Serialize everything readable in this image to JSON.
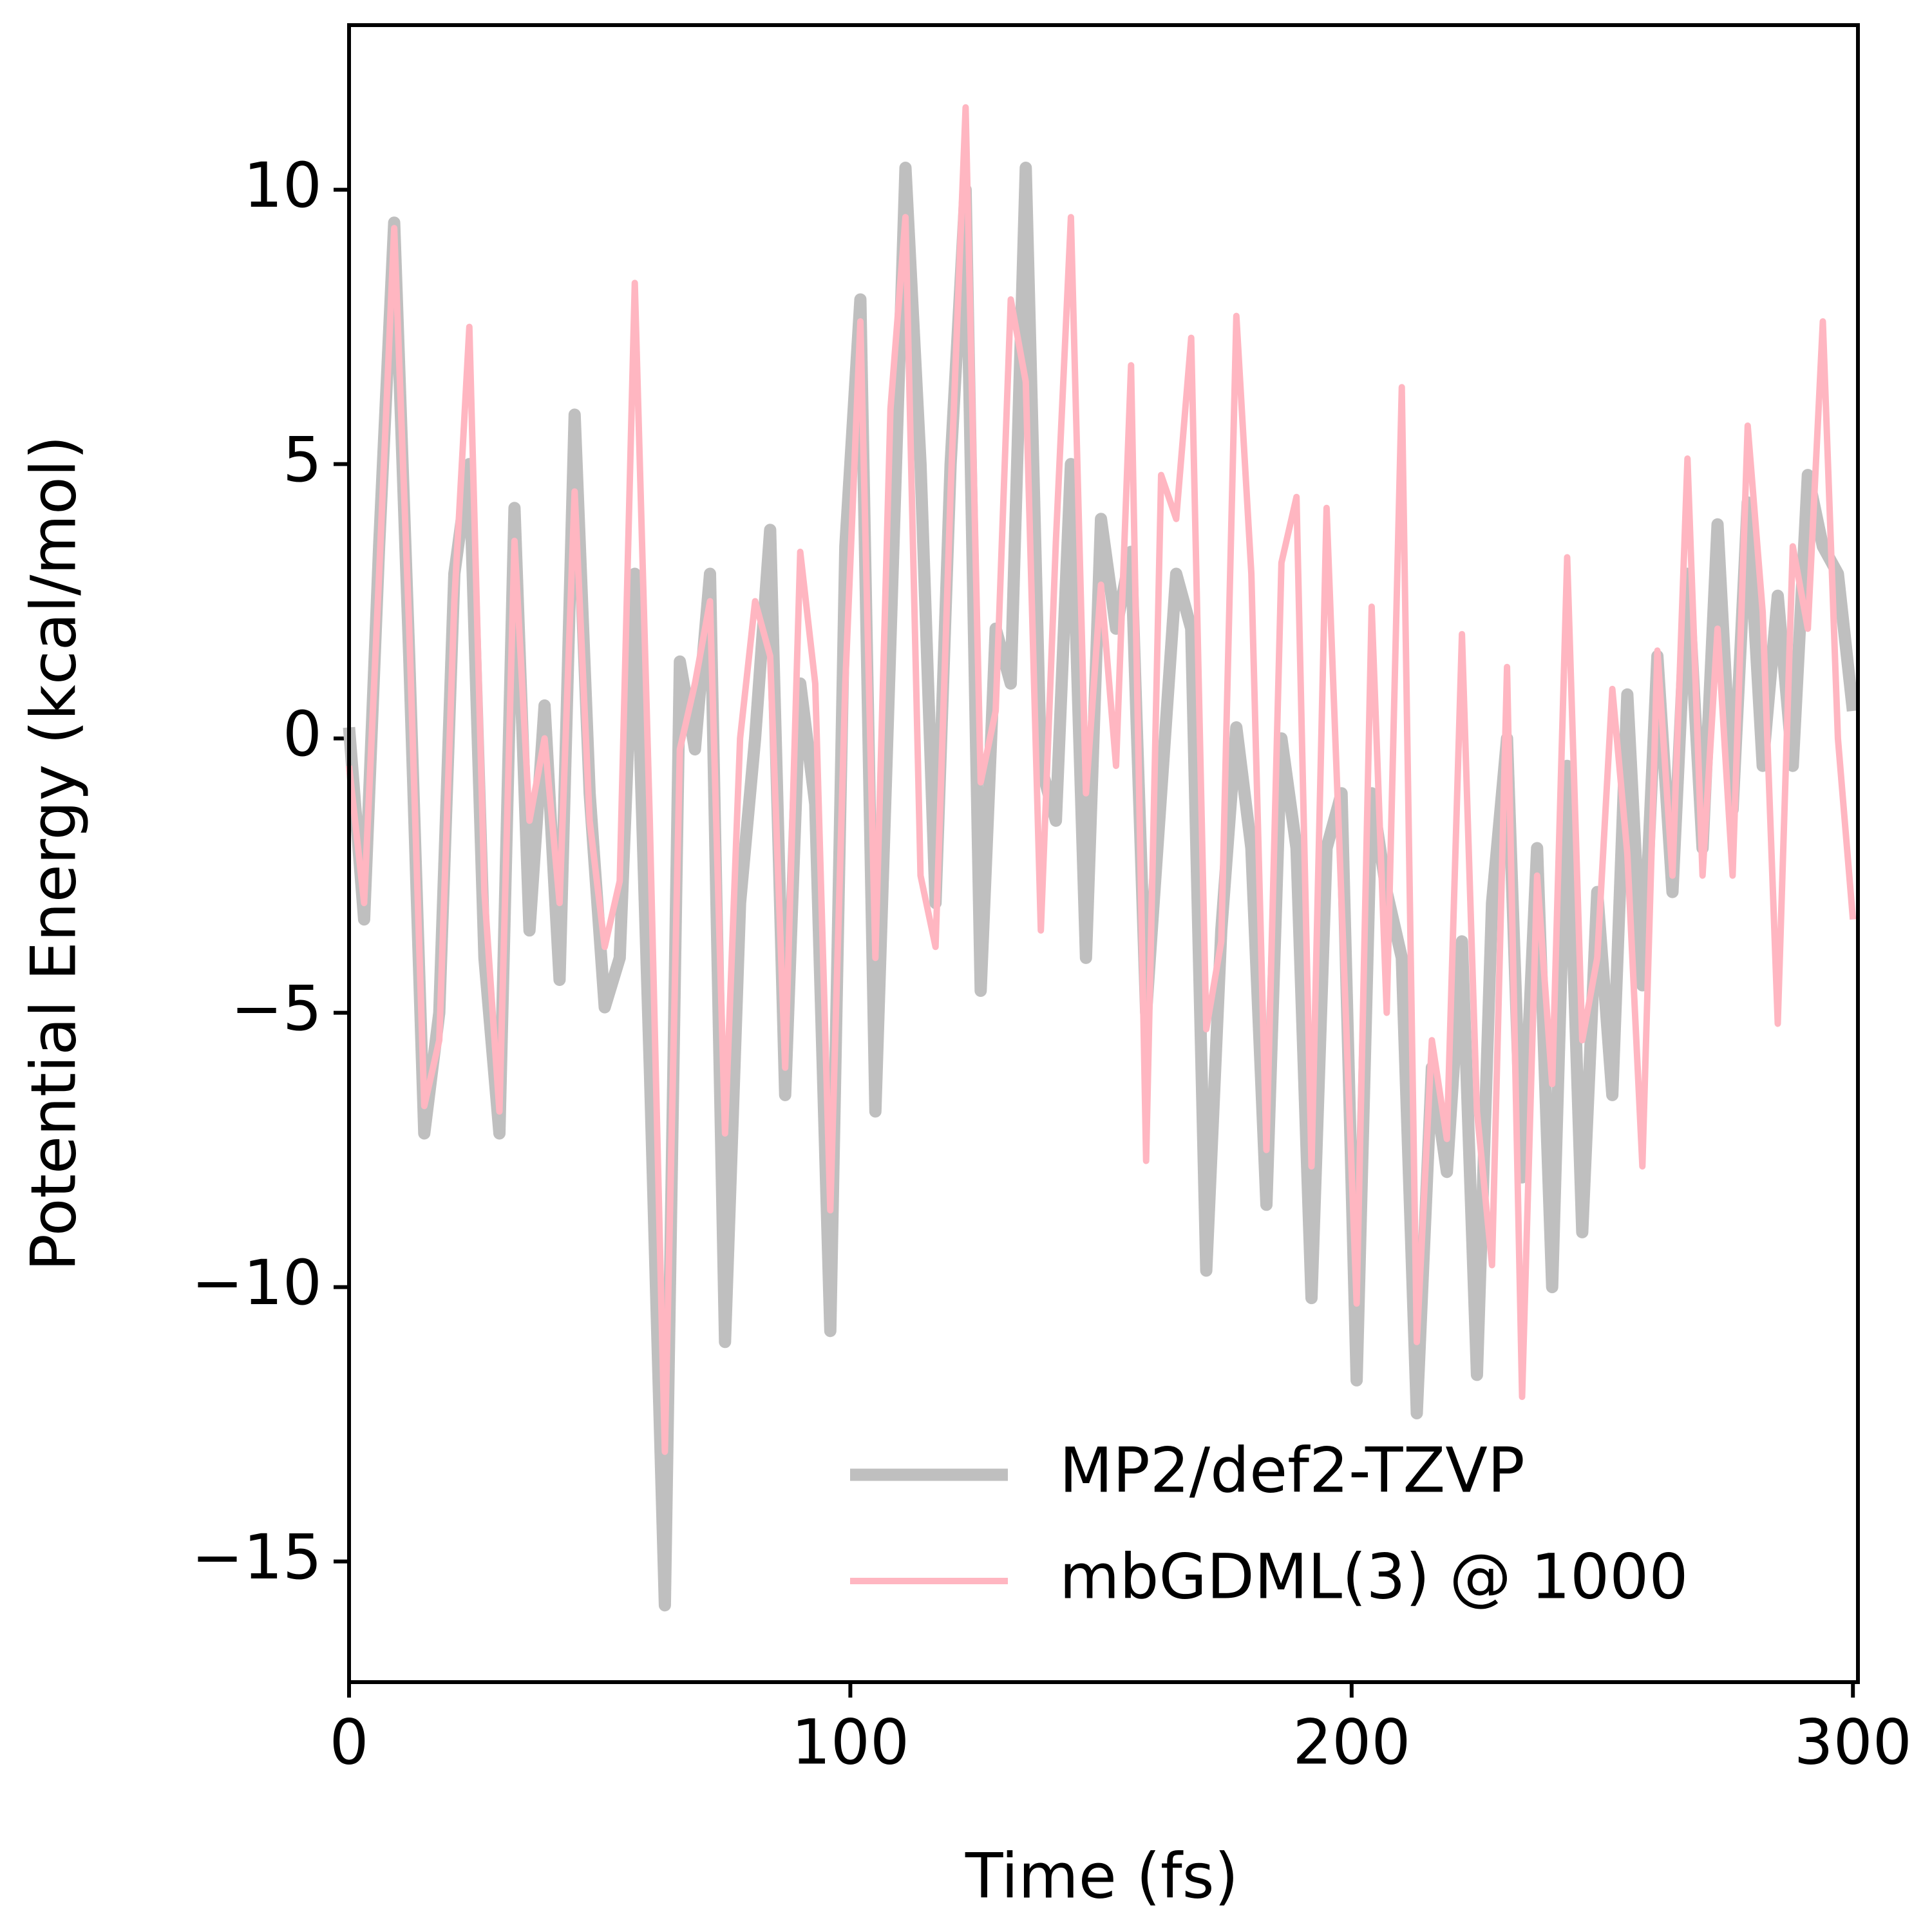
{
  "chart_data": {
    "type": "line",
    "x_label": "Time (fs)",
    "y_label": "Potential Energy (kcal/mol)",
    "x": [
      0,
      3,
      6,
      9,
      12,
      15,
      18,
      21,
      24,
      27,
      30,
      33,
      36,
      39,
      42,
      45,
      48,
      51,
      54,
      57,
      60,
      63,
      66,
      69,
      72,
      75,
      78,
      81,
      84,
      87,
      90,
      93,
      96,
      99,
      102,
      105,
      108,
      111,
      114,
      117,
      120,
      123,
      126,
      129,
      132,
      135,
      138,
      141,
      144,
      147,
      150,
      153,
      156,
      159,
      162,
      165,
      168,
      171,
      174,
      177,
      180,
      183,
      186,
      189,
      192,
      195,
      198,
      201,
      204,
      207,
      210,
      213,
      216,
      219,
      222,
      225,
      228,
      231,
      234,
      237,
      240,
      243,
      246,
      249,
      252,
      255,
      258,
      261,
      264,
      267,
      270,
      273,
      276,
      279,
      282,
      285,
      288,
      291,
      294,
      297,
      300
    ],
    "series": [
      {
        "name": "MP2/def2-TZVP",
        "color": "#bfbfbf",
        "width": "thick",
        "values": [
          0.2,
          -3.3,
          3.5,
          9.4,
          1.5,
          -7.2,
          -5,
          3,
          5,
          -4,
          -7.2,
          4.2,
          -3.5,
          0.6,
          -4.4,
          5.9,
          -1,
          -4.9,
          -4,
          3,
          -6,
          -15.8,
          1.4,
          -0.2,
          3,
          -11,
          -3,
          0,
          3.8,
          -6.5,
          1,
          -1.2,
          -10.8,
          3.5,
          8,
          -6.8,
          1.8,
          10.4,
          5,
          -3,
          5,
          10,
          -4.6,
          2,
          1,
          10.4,
          -0.5,
          -1.5,
          5,
          -4,
          4,
          2,
          3.4,
          -5,
          -1,
          3,
          2,
          -9.7,
          -3.5,
          0.2,
          -2,
          -8.5,
          0,
          -2,
          -10.2,
          -2,
          -1,
          -11.7,
          -1,
          -2.8,
          -4,
          -12.3,
          -6,
          -7.9,
          -3.7,
          -11.6,
          -3,
          0,
          -8,
          -2,
          -10,
          -0.5,
          -9,
          -2.8,
          -6.5,
          0.8,
          -4.5,
          1.5,
          -2.8,
          3,
          -2,
          3.9,
          -1.3,
          4.3,
          -0.5,
          2.6,
          -0.5,
          4.8,
          3.5,
          3,
          0.5
        ]
      },
      {
        "name": "mbGDML(3) @ 1000",
        "color": "#ffb6c1",
        "width": "thin",
        "values": [
          -0.5,
          -3,
          3,
          9.3,
          2,
          -6.7,
          -5.5,
          2.5,
          7.5,
          -2.8,
          -6.8,
          3.6,
          -1.5,
          0,
          -3,
          4.5,
          -1.5,
          -3.8,
          -2.6,
          8.3,
          -1.5,
          -13,
          -0.2,
          1,
          2.5,
          -7.2,
          0,
          2.5,
          1.5,
          -6,
          3.4,
          1,
          -8.6,
          1,
          7.6,
          -4,
          6,
          9.5,
          -2.5,
          -3.8,
          4.5,
          11.5,
          -0.8,
          0.5,
          8,
          6.5,
          -3.5,
          3.6,
          9.5,
          -1,
          2.8,
          -0.5,
          6.8,
          -7.7,
          4.8,
          4,
          7.3,
          -5.3,
          -3.7,
          7.7,
          3,
          -7.5,
          3.2,
          4.4,
          -7.8,
          4.2,
          -3,
          -10.3,
          2.4,
          -5,
          6.4,
          -11,
          -5.5,
          -7.3,
          1.9,
          -6.8,
          -9.6,
          1.3,
          -12,
          -2.5,
          -6.3,
          3.3,
          -5.5,
          -4,
          0.9,
          -2.1,
          -7.8,
          1.6,
          -2.5,
          5.1,
          -2.5,
          2,
          -2.5,
          5.7,
          2.3,
          -5.2,
          3.5,
          2,
          7.6,
          0,
          -3.3
        ]
      }
    ],
    "xlim": [
      0,
      301
    ],
    "ylim": [
      -17.2,
      13
    ],
    "xticks": [
      0,
      100,
      200,
      300
    ],
    "yticks": [
      {
        "value": -15,
        "label": "−15"
      },
      {
        "value": -10,
        "label": "−10"
      },
      {
        "value": -5,
        "label": "−5"
      },
      0,
      5,
      10
    ],
    "legend": "lower right",
    "grid": false
  }
}
